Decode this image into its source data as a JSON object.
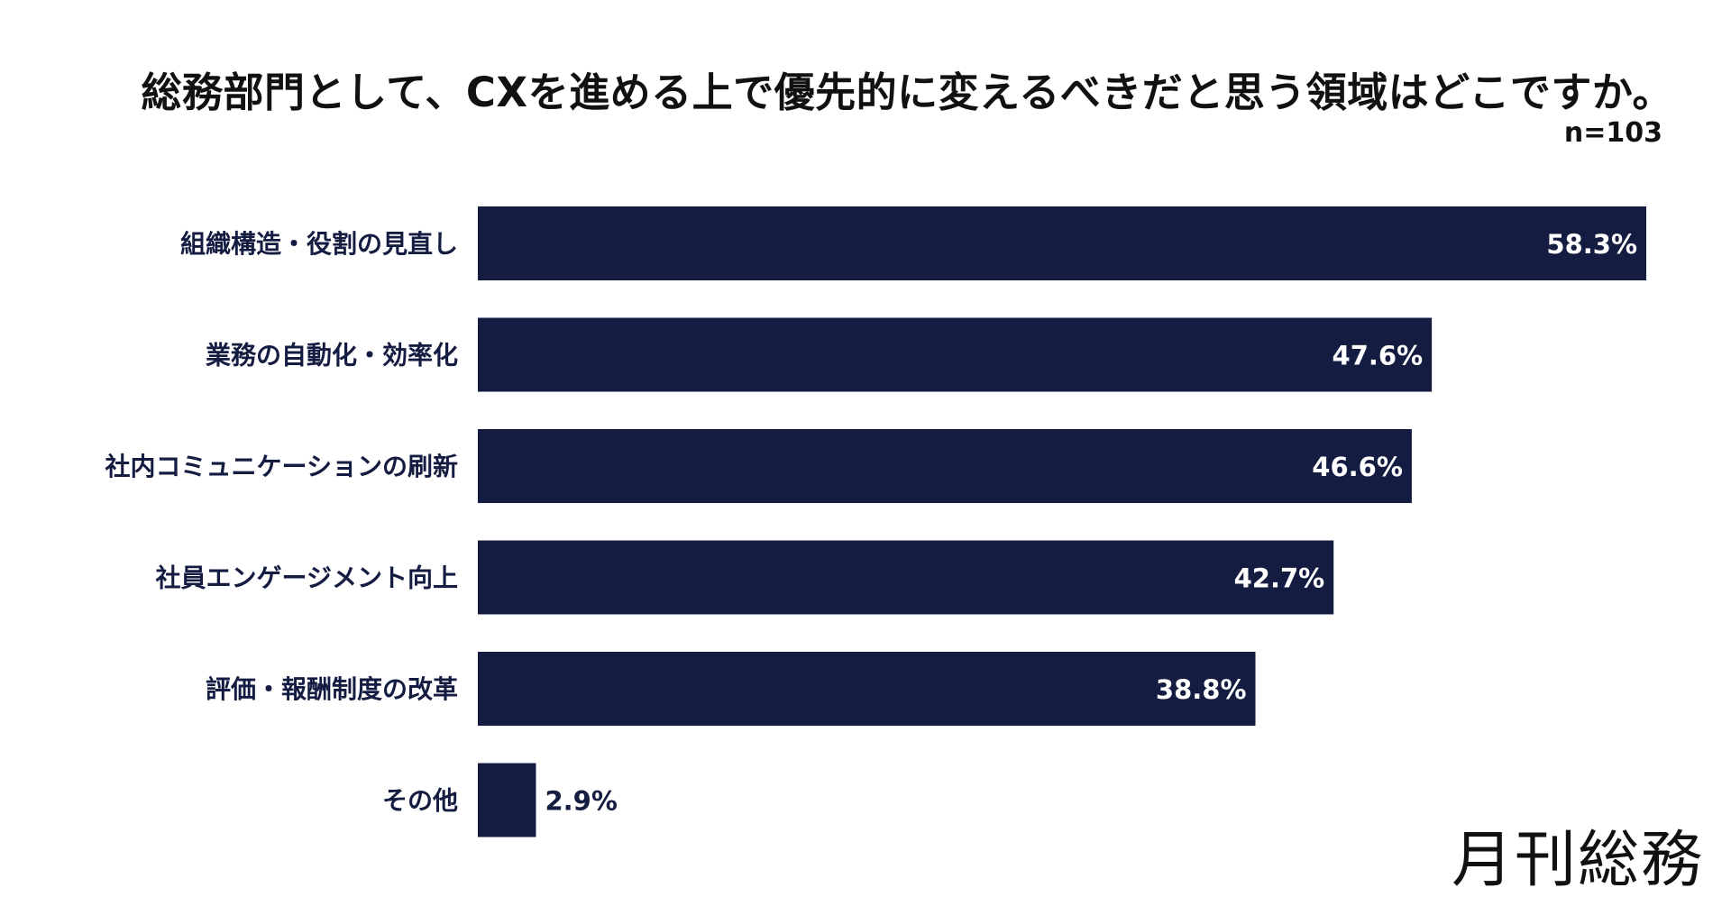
{
  "title": "総務部門として、CXを進める上で優先的に変えるべきだと思う領域はどこですか。",
  "sample": "n=103",
  "logo": "月刊総務",
  "colors": {
    "bar": "#141c41",
    "label_inside": "#ffffff",
    "label_outside": "#141c41",
    "category": "#141c41"
  },
  "chart_data": {
    "type": "bar",
    "orientation": "horizontal",
    "categories": [
      "組織構造・役割の見直し",
      "業務の自動化・効率化",
      "社内コミュニケーションの刷新",
      "社員エンゲージメント向上",
      "評価・報酬制度の改革",
      "その他"
    ],
    "values": [
      58.3,
      47.6,
      46.6,
      42.7,
      38.8,
      2.9
    ],
    "value_labels": [
      "58.3%",
      "47.6%",
      "46.6%",
      "42.7%",
      "38.8%",
      "2.9%"
    ],
    "unit": "%",
    "xlim": [
      0,
      58.3
    ],
    "grid": false,
    "legend": "none"
  }
}
